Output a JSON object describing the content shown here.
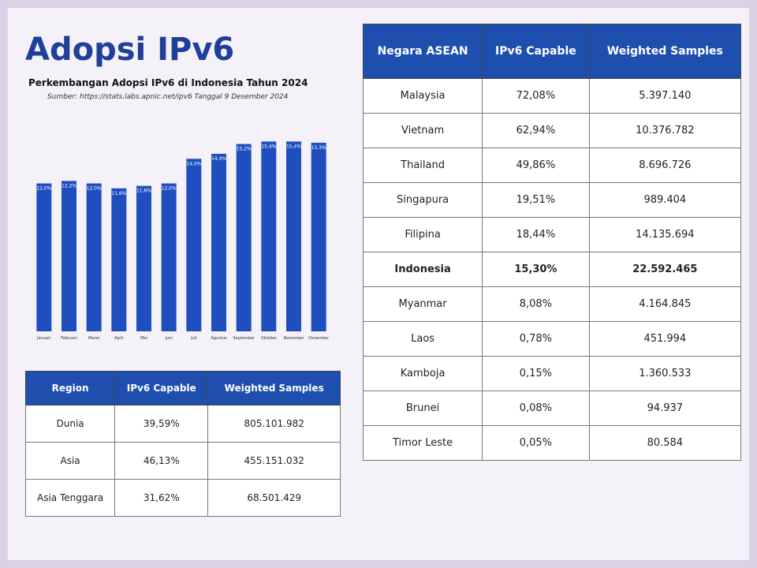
{
  "header": {
    "title": "Adopsi IPv6",
    "subtitle": "Perkembangan Adopsi IPv6 di Indonesia Tahun 2024",
    "source": "Sumber: https://stats.labs.apnic.net/ipv6  Tanggal 9 Desember 2024"
  },
  "chart_data": {
    "type": "bar",
    "categories": [
      "Januari",
      "Februari",
      "Maret",
      "April",
      "Mei",
      "Juni",
      "Juli",
      "Agustus",
      "September",
      "Oktober",
      "November",
      "Desember"
    ],
    "values": [
      12.0,
      12.2,
      12.0,
      11.6,
      11.8,
      12.0,
      14.0,
      14.4,
      15.2,
      15.4,
      15.4,
      15.3
    ],
    "value_labels": [
      "12,0%",
      "12,2%",
      "12,0%",
      "11,6%",
      "11,8%",
      "12,0%",
      "14,0%",
      "14,4%",
      "15,2%",
      "15,4%",
      "15,4%",
      "15,3%"
    ],
    "color": "#1f4fbf",
    "ylim": [
      0,
      16
    ]
  },
  "region_table": {
    "columns": [
      "Region",
      "IPv6 Capable",
      "Weighted Samples"
    ],
    "rows": [
      [
        "Dunia",
        "39,59%",
        "805.101.982"
      ],
      [
        "Asia",
        "46,13%",
        "455.151.032"
      ],
      [
        "Asia Tenggara",
        "31,62%",
        "68.501.429"
      ]
    ]
  },
  "asean_table": {
    "columns": [
      "Negara ASEAN",
      "IPv6 Capable",
      "Weighted Samples"
    ],
    "rows": [
      [
        "Malaysia",
        "72,08%",
        "5.397.140"
      ],
      [
        "Vietnam",
        "62,94%",
        "10.376.782"
      ],
      [
        "Thailand",
        "49,86%",
        "8.696.726"
      ],
      [
        "Singapura",
        "19,51%",
        "989.404"
      ],
      [
        "Filipina",
        "18,44%",
        "14.135.694"
      ],
      [
        "Indonesia",
        "15,30%",
        "22.592.465"
      ],
      [
        "Myanmar",
        "8,08%",
        "4.164.845"
      ],
      [
        "Laos",
        "0,78%",
        "451.994"
      ],
      [
        "Kamboja",
        "0,15%",
        "1.360.533"
      ],
      [
        "Brunei",
        "0,08%",
        "94.937"
      ],
      [
        "Timor Leste",
        "0,05%",
        "80.584"
      ]
    ]
  }
}
